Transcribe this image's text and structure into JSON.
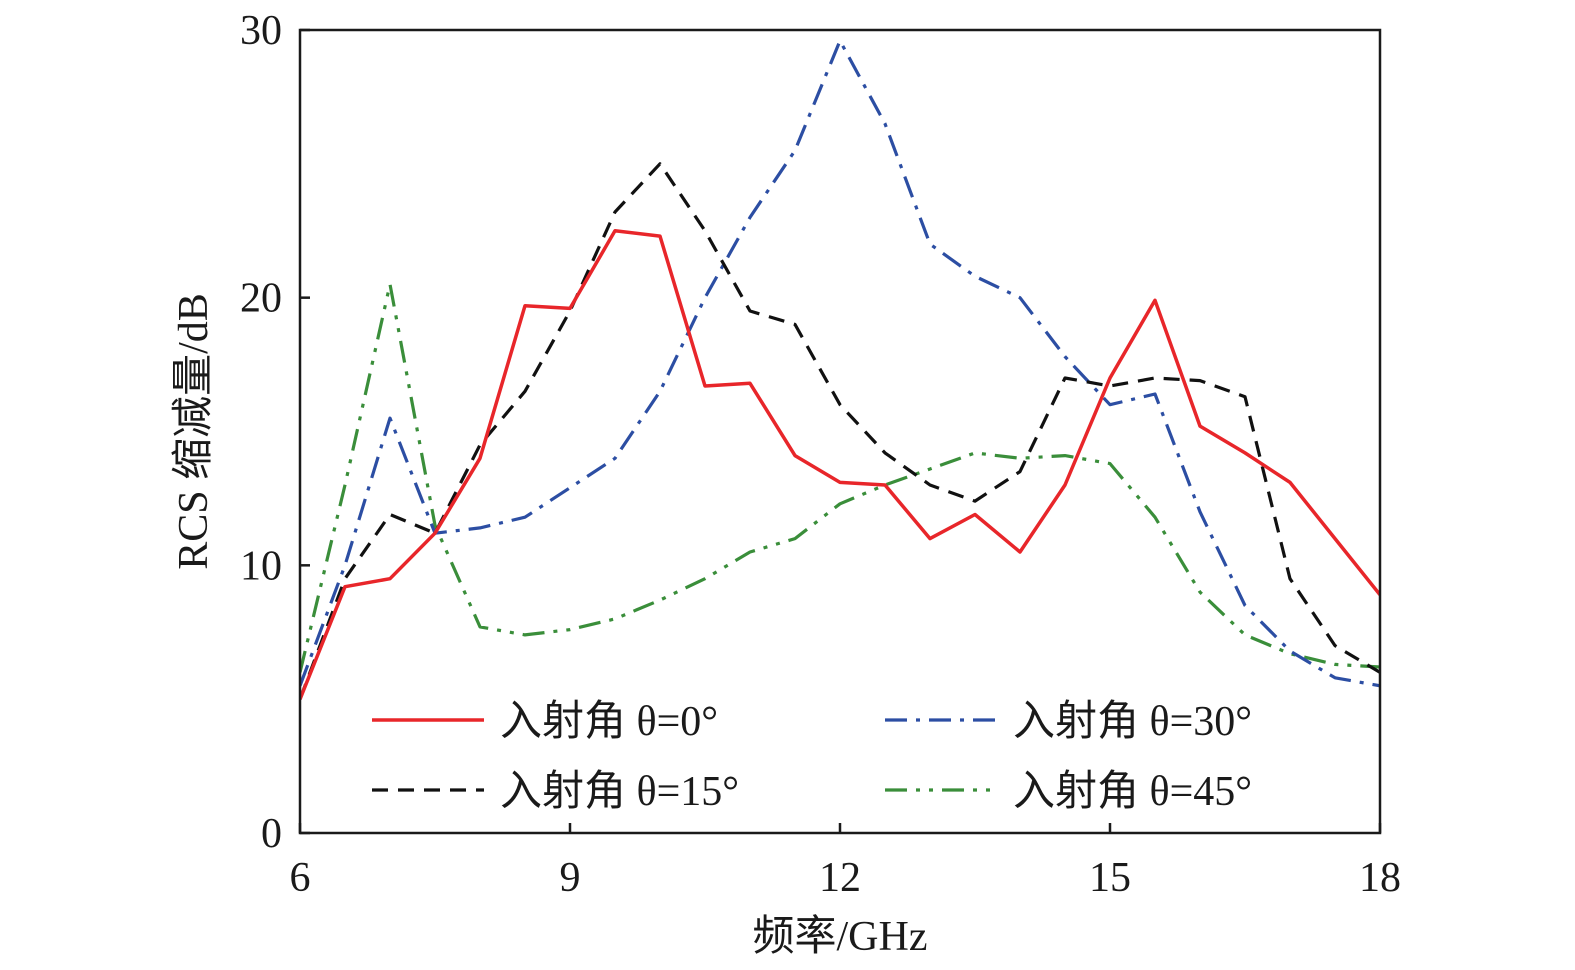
{
  "chart_data": {
    "type": "line",
    "xlabel": "频率/GHz",
    "ylabel": "RCS 缩减量/dB",
    "xlim": [
      6,
      18
    ],
    "ylim": [
      0,
      30
    ],
    "xticks": [
      6,
      9,
      12,
      15,
      18
    ],
    "yticks": [
      0,
      10,
      20,
      30
    ],
    "xtick_labels": [
      "6",
      "9",
      "12",
      "15",
      "18"
    ],
    "ytick_labels": [
      "0",
      "10",
      "20",
      "30"
    ],
    "grid": false,
    "legend_position": "bottom-center, inside plot, 2 columns",
    "series": [
      {
        "name": "入射角 θ=0°",
        "color": "#e8262a",
        "style": "solid",
        "x": [
          6,
          6.5,
          7,
          7.5,
          8,
          8.5,
          9,
          9.5,
          10,
          10.5,
          11,
          11.5,
          12,
          12.5,
          13,
          13.5,
          14,
          14.5,
          15,
          15.5,
          16,
          16.5,
          17,
          17.5,
          18
        ],
        "y": [
          5.0,
          9.2,
          9.5,
          11.2,
          14.0,
          19.7,
          19.6,
          22.5,
          22.3,
          16.7,
          16.8,
          14.1,
          13.1,
          13.0,
          11.0,
          11.9,
          10.5,
          13.0,
          17.0,
          19.9,
          15.2,
          14.2,
          13.1,
          11.0,
          8.9
        ]
      },
      {
        "name": "入射角 θ=30°",
        "color": "#2c4ea3",
        "style": "dashdot",
        "x": [
          6,
          6.5,
          7,
          7.5,
          8,
          8.5,
          9,
          9.5,
          10,
          10.5,
          11,
          11.5,
          12,
          12.5,
          13,
          13.5,
          14,
          14.5,
          15,
          15.5,
          16,
          16.5,
          17,
          17.5,
          18
        ],
        "y": [
          5.5,
          10.0,
          15.5,
          11.2,
          11.4,
          11.8,
          12.9,
          14.0,
          16.5,
          20.0,
          23.0,
          25.5,
          29.6,
          26.5,
          22.0,
          20.8,
          20.0,
          17.8,
          16.0,
          16.4,
          12.0,
          8.5,
          6.8,
          5.8,
          5.5
        ]
      },
      {
        "name": "入射角 θ=15°",
        "color": "#111111",
        "style": "dashed",
        "x": [
          6,
          6.5,
          7,
          7.5,
          8,
          8.5,
          9,
          9.5,
          10,
          10.5,
          11,
          11.5,
          12,
          12.5,
          13,
          13.5,
          14,
          14.5,
          15,
          15.5,
          16,
          16.5,
          17,
          17.5,
          18
        ],
        "y": [
          5.0,
          9.5,
          11.9,
          11.2,
          14.5,
          16.5,
          19.5,
          23.2,
          25.0,
          22.5,
          19.5,
          19.0,
          16.0,
          14.2,
          13.0,
          12.4,
          13.5,
          17.0,
          16.7,
          17.0,
          16.9,
          16.3,
          9.5,
          7.0,
          6.0
        ]
      },
      {
        "name": "入射角 θ=45°",
        "color": "#3a8e3a",
        "style": "dashdotdot",
        "x": [
          6,
          6.5,
          7,
          7.5,
          8,
          8.5,
          9,
          9.5,
          10,
          10.5,
          11,
          11.5,
          12,
          12.5,
          13,
          13.5,
          14,
          14.5,
          15,
          15.5,
          16,
          16.5,
          17,
          17.5,
          18
        ],
        "y": [
          6.0,
          13.0,
          20.5,
          11.5,
          7.7,
          7.4,
          7.6,
          8.0,
          8.7,
          9.5,
          10.5,
          11.0,
          12.3,
          13.0,
          13.6,
          14.2,
          14.0,
          14.1,
          13.8,
          11.8,
          9.0,
          7.4,
          6.7,
          6.3,
          6.2
        ]
      }
    ],
    "legend_order": [
      "入射角 θ=0°",
      "入射角 θ=30°",
      "入射角 θ=15°",
      "入射角 θ=45°"
    ]
  }
}
